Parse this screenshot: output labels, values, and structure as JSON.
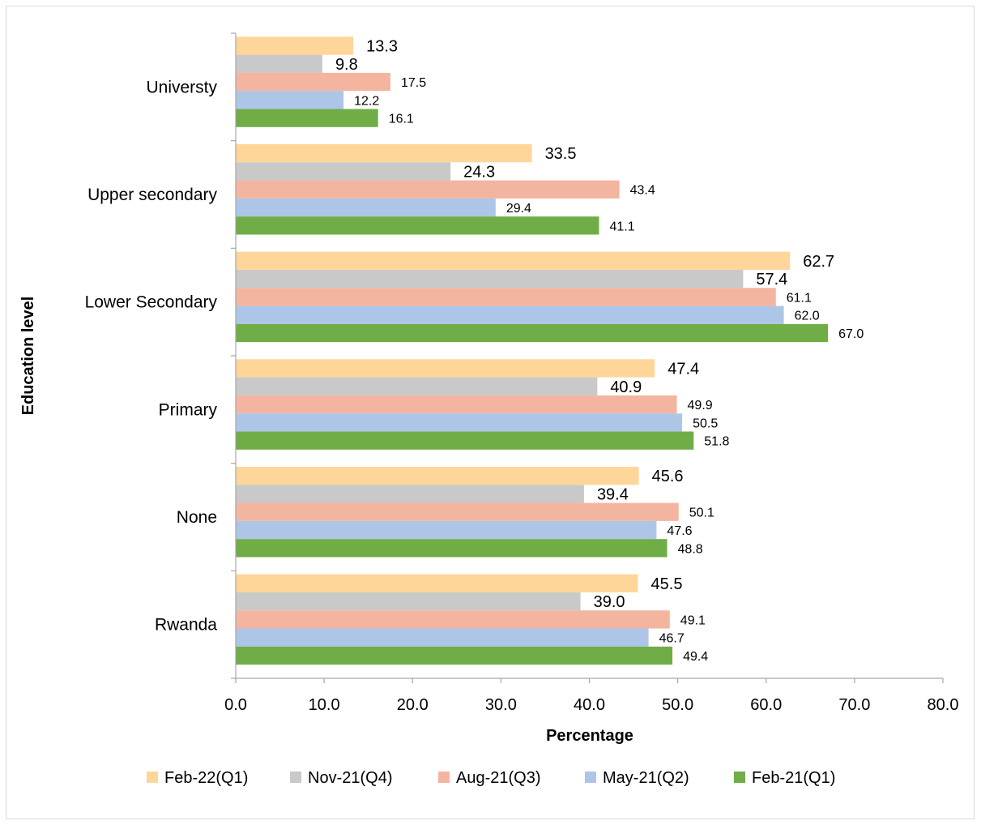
{
  "chart_data": {
    "type": "bar",
    "orientation": "horizontal",
    "categories": [
      "Universty",
      "Upper secondary",
      "Lower Secondary",
      "Primary",
      "None",
      "Rwanda"
    ],
    "series": [
      {
        "name": "Feb-22(Q1)",
        "color": "#ffd699",
        "values": [
          13.3,
          33.5,
          62.7,
          47.4,
          45.6,
          45.5
        ]
      },
      {
        "name": "Nov-21(Q4)",
        "color": "#c9c9c9",
        "values": [
          9.8,
          24.3,
          57.4,
          40.9,
          39.4,
          39.0
        ]
      },
      {
        "name": "Aug-21(Q3)",
        "color": "#f4b5a0",
        "values": [
          17.5,
          43.4,
          61.1,
          49.9,
          50.1,
          49.1
        ]
      },
      {
        "name": "May-21(Q2)",
        "color": "#adc6e8",
        "values": [
          12.2,
          29.4,
          62.0,
          50.5,
          47.6,
          46.7
        ]
      },
      {
        "name": "Feb-21(Q1)",
        "color": "#70ad47",
        "values": [
          16.1,
          41.1,
          67.0,
          51.8,
          48.8,
          49.4
        ]
      }
    ],
    "xlabel": "Percentage",
    "ylabel": "Education level",
    "xlim": [
      0,
      80
    ],
    "xticks": [
      "0.0",
      "10.0",
      "20.0",
      "30.0",
      "40.0",
      "50.0",
      "60.0",
      "70.0",
      "80.0"
    ],
    "grid": false,
    "legend_position": "bottom"
  }
}
